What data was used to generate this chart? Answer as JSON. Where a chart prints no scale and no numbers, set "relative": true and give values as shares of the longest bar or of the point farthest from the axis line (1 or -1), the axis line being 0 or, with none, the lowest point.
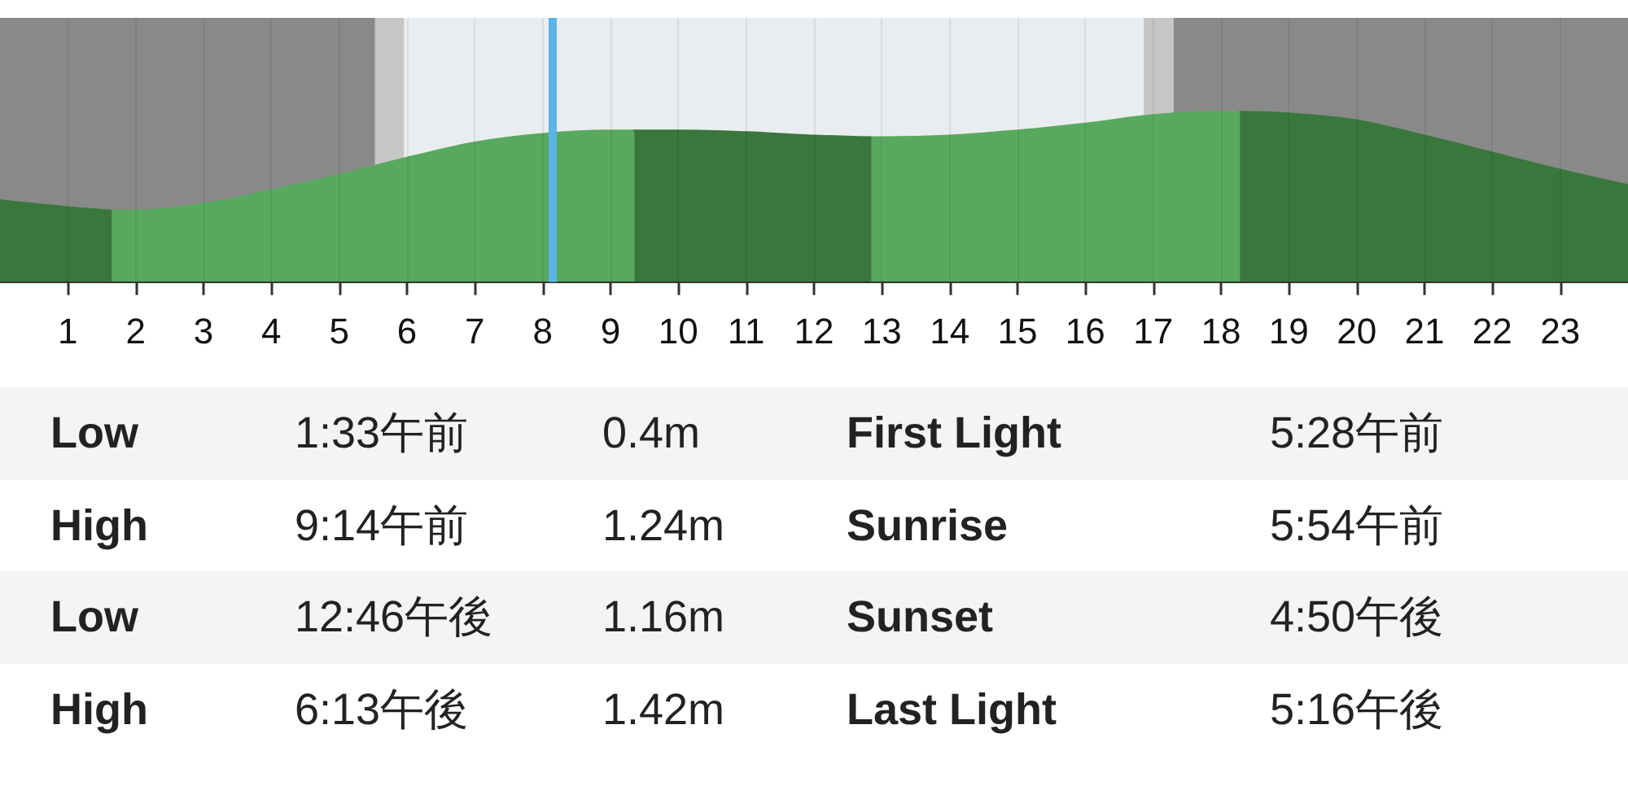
{
  "chart_data": [
    {
      "type": "area",
      "relative": true,
      "xlim": [
        0,
        24
      ],
      "xticks": [
        1,
        2,
        3,
        4,
        5,
        6,
        7,
        8,
        9,
        10,
        11,
        12,
        13,
        14,
        15,
        16,
        17,
        18,
        19,
        20,
        21,
        22,
        23
      ],
      "grid": "x",
      "marker": "none",
      "series": [
        {
          "color": "#3a773c",
          "x": [
            0,
            1,
            1.65
          ],
          "values": [
            0.48,
            0.44,
            0.42
          ]
        },
        {
          "color": "#58a95f",
          "x": [
            1.65,
            2,
            3,
            4,
            5,
            6,
            7,
            8,
            9,
            9.35
          ],
          "values": [
            0.42,
            0.42,
            0.46,
            0.54,
            0.63,
            0.73,
            0.82,
            0.87,
            0.89,
            0.89
          ]
        },
        {
          "color": "#3a773c",
          "x": [
            9.35,
            10,
            11,
            12,
            12.85
          ],
          "values": [
            0.89,
            0.89,
            0.88,
            0.86,
            0.85
          ]
        },
        {
          "color": "#58a95f",
          "x": [
            12.85,
            13,
            14,
            15,
            16,
            17,
            18,
            18.28
          ],
          "values": [
            0.85,
            0.85,
            0.86,
            0.89,
            0.93,
            0.98,
            1.0,
            1.0
          ]
        },
        {
          "color": "#3a773c",
          "x": [
            18.28,
            19,
            20,
            21,
            22,
            23,
            24
          ],
          "values": [
            1.0,
            0.99,
            0.95,
            0.86,
            0.76,
            0.66,
            0.57
          ]
        }
      ],
      "bands": [
        {
          "axis": "x",
          "from": 0,
          "to": 5.53,
          "color": "#898989"
        },
        {
          "axis": "x",
          "from": 5.53,
          "to": 5.96,
          "color": "#c6c6c6"
        },
        {
          "axis": "x",
          "from": 5.96,
          "to": 16.86,
          "color": "#eaedef"
        },
        {
          "axis": "x",
          "from": 16.86,
          "to": 17.3,
          "color": "#c6c6c6"
        },
        {
          "axis": "x",
          "from": 17.3,
          "to": 24,
          "color": "#898989"
        }
      ],
      "ref_lines": [
        {
          "axis": "x",
          "value": 8.14,
          "color": "#5ab4e4"
        }
      ]
    },
    {
      "type": "other",
      "annotations": [
        "Low",
        "1:33午前",
        "0.4m",
        "First Light",
        "5:28午前",
        "High",
        "9:14午前",
        "1.24m",
        "Sunrise",
        "5:54午前",
        "Low",
        "12:46午後",
        "1.16m",
        "Sunset",
        "4:50午後",
        "High",
        "6:13午後",
        "1.42m",
        "Last Light",
        "5:16午後"
      ]
    }
  ]
}
